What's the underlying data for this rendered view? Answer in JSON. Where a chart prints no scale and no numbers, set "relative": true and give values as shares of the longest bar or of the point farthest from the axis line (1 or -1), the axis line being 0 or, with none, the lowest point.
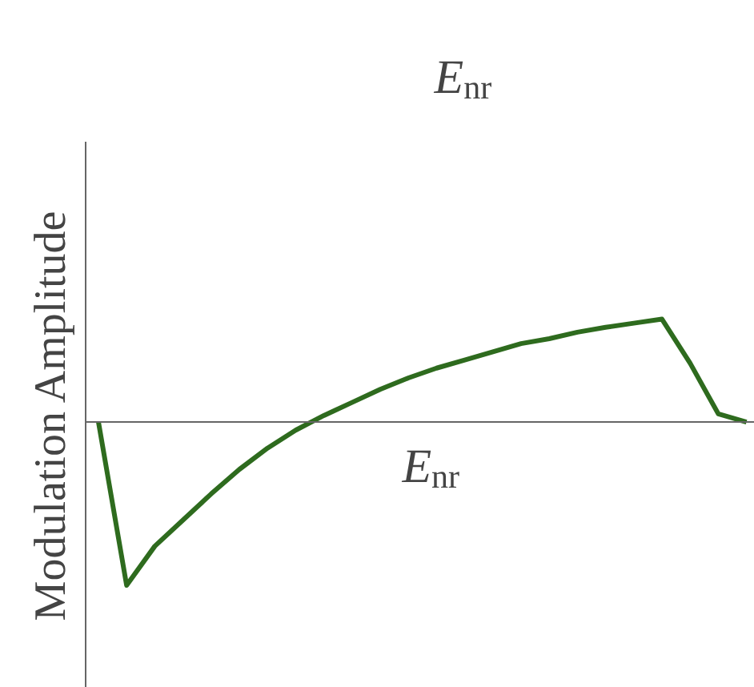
{
  "chart_data": {
    "type": "line",
    "relative": true,
    "xlabel": "E$_{nr}$",
    "ylabel": "Modulation Amplitude",
    "annotations": [
      "E$_{nr}$"
    ],
    "categories": [
      null,
      null,
      null,
      null,
      null,
      null,
      null,
      null,
      null,
      null,
      null,
      null,
      null,
      null,
      null,
      null,
      null,
      null,
      null,
      null,
      null,
      null,
      null,
      null
    ],
    "series": [
      {
        "color": "#2e6b1e",
        "values": [
          0,
          -1,
          -0.76,
          -0.6,
          -0.44,
          -0.29,
          -0.16,
          -0.05,
          0.04,
          0.12,
          0.2,
          0.27,
          0.33,
          0.38,
          0.43,
          0.48,
          0.51,
          0.55,
          0.58,
          0.605,
          0.63,
          0.36,
          0.05,
          0
        ]
      }
    ]
  }
}
